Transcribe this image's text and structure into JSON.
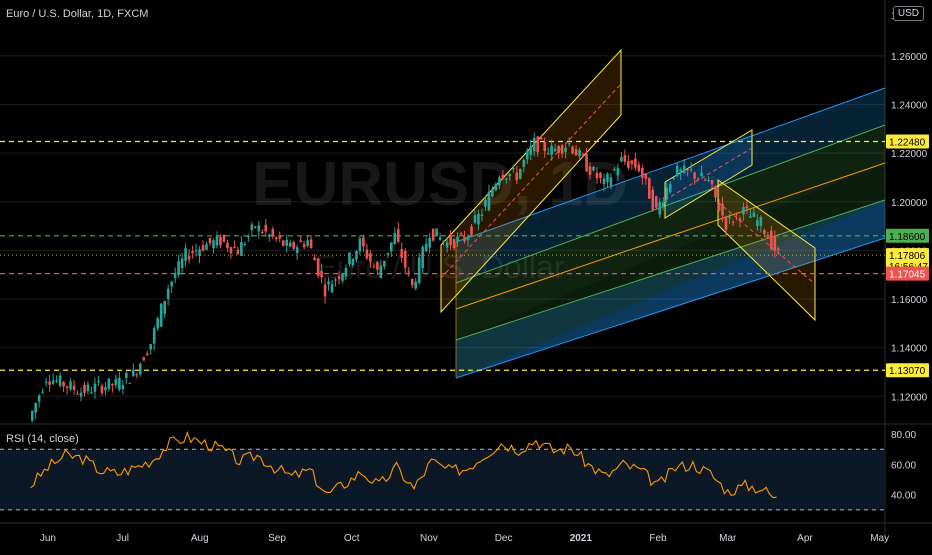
{
  "header": {
    "symbol_line": "Euro / U.S. Dollar, 1D, FXCM",
    "currency_button": "USD"
  },
  "watermark": {
    "ticker": "EURUSD, 1D",
    "name": "Euro / U.S. Dollar"
  },
  "colors": {
    "background": "#000000",
    "up": "#26a69a",
    "down": "#ef5350",
    "yellow": "#ffeb3b",
    "blue": "#2196f3",
    "green": "#4caf50",
    "orange": "#ff9800",
    "rsi": "#ff9800"
  },
  "chart_data": [
    {
      "type": "candlestick",
      "title": "",
      "x_ticks": [
        "Jun",
        "Jul",
        "Aug",
        "Sep",
        "Oct",
        "Nov",
        "Dec",
        "2021",
        "Feb",
        "Mar",
        "Apr",
        "May"
      ],
      "y_ticks": [
        "1.12000",
        "1.14000",
        "1.16000",
        "1.18000",
        "1.20000",
        "1.22000",
        "1.24000",
        "1.26000"
      ],
      "ylim": [
        1.109,
        1.283
      ],
      "x": [
        "2020-05-25",
        "2020-06-01",
        "2020-06-08",
        "2020-06-15",
        "2020-06-22",
        "2020-06-29",
        "2020-07-06",
        "2020-07-13",
        "2020-07-20",
        "2020-07-27",
        "2020-08-03",
        "2020-08-10",
        "2020-08-17",
        "2020-08-24",
        "2020-08-31",
        "2020-09-07",
        "2020-09-14",
        "2020-09-21",
        "2020-09-28",
        "2020-10-05",
        "2020-10-12",
        "2020-10-19",
        "2020-10-26",
        "2020-11-02",
        "2020-11-09",
        "2020-11-16",
        "2020-11-23",
        "2020-11-30",
        "2020-12-07",
        "2020-12-14",
        "2020-12-21",
        "2020-12-28",
        "2021-01-04",
        "2021-01-11",
        "2021-01-18",
        "2021-01-25",
        "2021-02-01",
        "2021-02-08",
        "2021-02-15",
        "2021-02-22",
        "2021-03-01",
        "2021-03-08",
        "2021-03-15",
        "2021-03-22"
      ],
      "close": [
        1.11,
        1.128,
        1.125,
        1.122,
        1.124,
        1.125,
        1.129,
        1.142,
        1.165,
        1.178,
        1.182,
        1.184,
        1.18,
        1.19,
        1.185,
        1.181,
        1.184,
        1.164,
        1.172,
        1.183,
        1.171,
        1.186,
        1.165,
        1.188,
        1.183,
        1.185,
        1.196,
        1.212,
        1.211,
        1.224,
        1.221,
        1.224,
        1.215,
        1.207,
        1.217,
        1.214,
        1.196,
        1.212,
        1.212,
        1.208,
        1.191,
        1.196,
        1.191,
        1.178
      ],
      "price_labels": [
        {
          "value": "1.22480",
          "price": 1.2248,
          "color": "yellow"
        },
        {
          "value": "1.18600",
          "price": 1.186,
          "color": "green"
        },
        {
          "value": "1.17806",
          "price": 1.17806,
          "color": "yellow",
          "countdown": "16:56:47"
        },
        {
          "value": "1.17045",
          "price": 1.17045,
          "color": "red"
        },
        {
          "value": "1.13070",
          "price": 1.1307,
          "color": "yellow"
        }
      ],
      "horizontal_levels": [
        {
          "price": 1.2248,
          "color": "yellow"
        },
        {
          "price": 1.186,
          "color": "green"
        },
        {
          "price": 1.17045,
          "color": "red"
        },
        {
          "price": 1.1307,
          "color": "yellow"
        }
      ]
    },
    {
      "type": "line",
      "title": "RSI (14, close)",
      "y_ticks": [
        "40.00",
        "60.00",
        "80.00"
      ],
      "ylim": [
        22,
        86
      ],
      "bands": [
        30,
        70
      ],
      "values": [
        46,
        58,
        66,
        64,
        56,
        54,
        58,
        63,
        74,
        78,
        74,
        70,
        62,
        66,
        58,
        52,
        56,
        40,
        47,
        55,
        46,
        58,
        44,
        62,
        56,
        57,
        66,
        74,
        70,
        76,
        69,
        71,
        60,
        52,
        60,
        56,
        46,
        58,
        60,
        54,
        42,
        46,
        44,
        35
      ]
    }
  ]
}
